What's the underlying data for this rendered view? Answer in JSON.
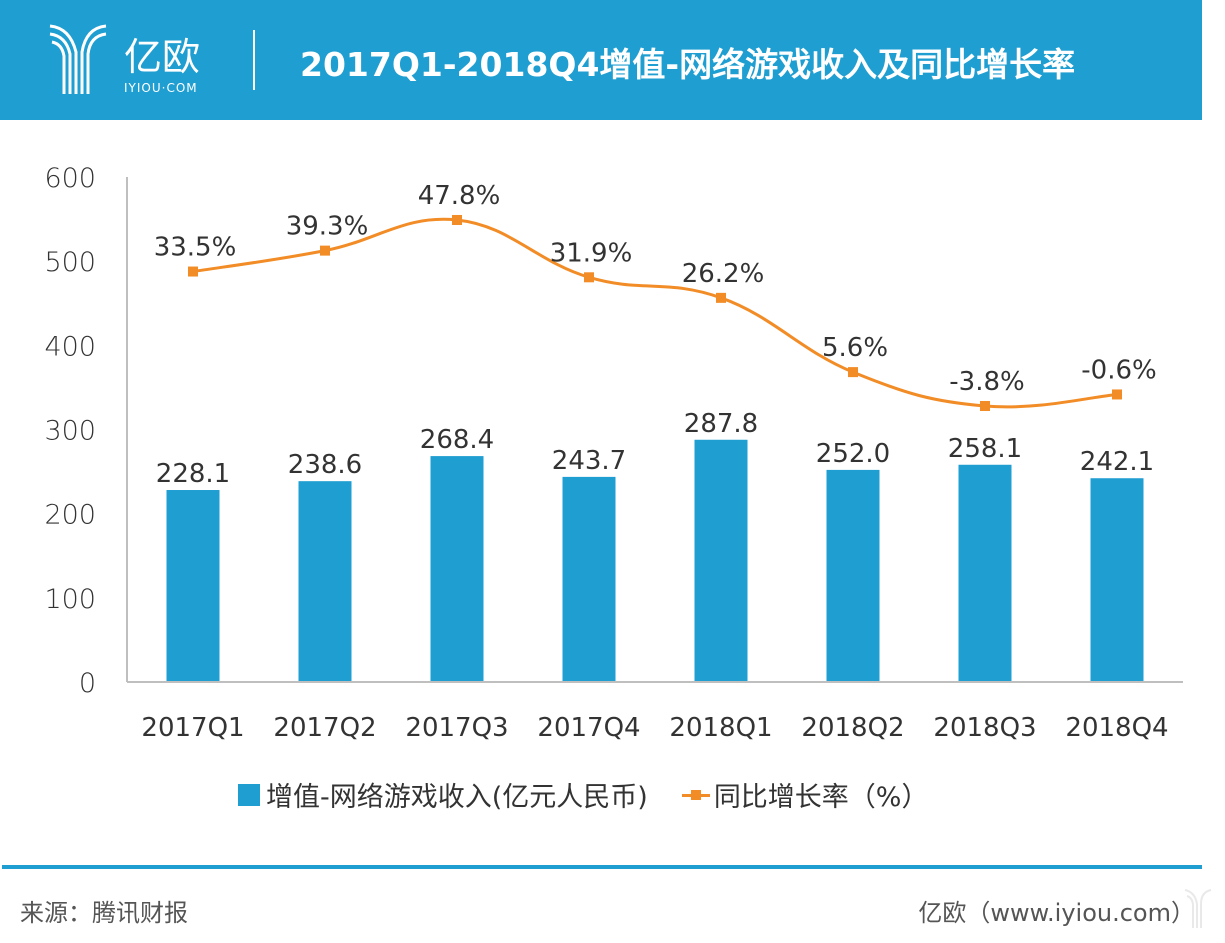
{
  "header": {
    "logo_text": "亿欧",
    "logo_sub": "IYIOU·COM",
    "title": "2017Q1-2018Q4增值-网络游戏收入及同比增长率"
  },
  "colors": {
    "brand": "#1f9ed1",
    "bar": "#1f9ed1",
    "line": "#f28c26",
    "axis": "#bfbfbf",
    "text": "#333333"
  },
  "chart_data": {
    "type": "bar",
    "title": "2017Q1-2018Q4增值-网络游戏收入及同比增长率",
    "categories": [
      "2017Q1",
      "2017Q2",
      "2017Q3",
      "2017Q4",
      "2018Q1",
      "2018Q2",
      "2018Q3",
      "2018Q4"
    ],
    "series": [
      {
        "name": "增值-网络游戏收入(亿元人民币)",
        "type": "bar",
        "values": [
          228.1,
          238.6,
          268.4,
          243.7,
          287.8,
          252.0,
          258.1,
          242.1
        ],
        "labels": [
          "228.1",
          "238.6",
          "268.4",
          "243.7",
          "287.8",
          "252.0",
          "258.1",
          "242.1"
        ]
      },
      {
        "name": "同比增长率（%）",
        "type": "line",
        "axis": "secondary-hidden",
        "values": [
          33.5,
          39.3,
          47.8,
          31.9,
          26.2,
          5.6,
          -3.8,
          -0.6
        ],
        "labels": [
          "33.5%",
          "39.3%",
          "47.8%",
          "31.9%",
          "26.2%",
          "5.6%",
          "-3.8%",
          "-0.6%"
        ]
      }
    ],
    "ylim": [
      0,
      600
    ],
    "yticks": [
      "0",
      "100",
      "200",
      "300",
      "400",
      "500",
      "600"
    ],
    "xlabel": "",
    "ylabel": "",
    "grid": false,
    "legend": "bottom"
  },
  "legend": {
    "bar_label": "增值-网络游戏收入(亿元人民币)",
    "line_label": "同比增长率（%）"
  },
  "footer": {
    "source": "来源：腾讯财报",
    "credit": "亿欧（www.iyiou.com）"
  }
}
